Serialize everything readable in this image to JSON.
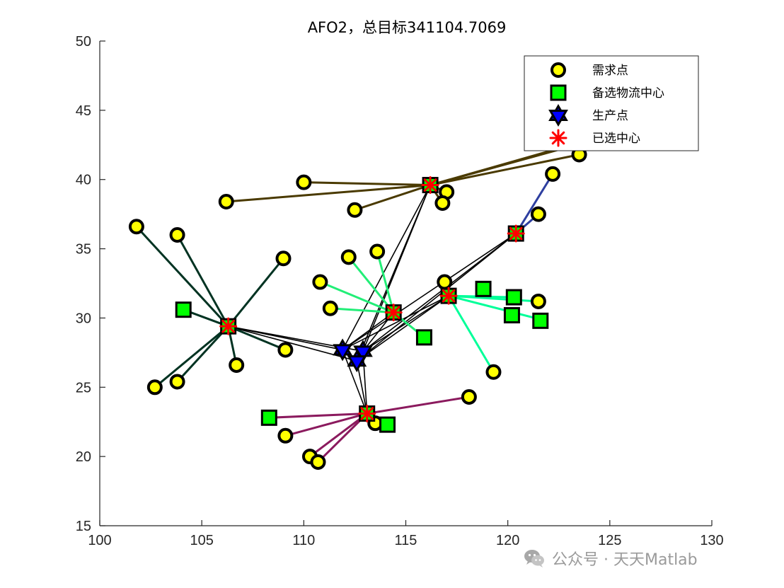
{
  "chart_data": {
    "type": "scatter",
    "title": "AFO2，总目标341104.7069",
    "xlabel": "",
    "ylabel": "",
    "xlim": [
      100,
      130
    ],
    "ylim": [
      15,
      50
    ],
    "xticks": [
      100,
      105,
      110,
      115,
      120,
      125,
      130
    ],
    "yticks": [
      15,
      20,
      25,
      30,
      35,
      40,
      45,
      50
    ],
    "grid": false,
    "legend_position": "top-right",
    "legend": [
      {
        "name": "需求点",
        "marker": "circle"
      },
      {
        "name": "备选物流中心",
        "marker": "square"
      },
      {
        "name": "生产点",
        "marker": "hexagram"
      },
      {
        "name": "已选中心",
        "marker": "asterisk"
      }
    ],
    "colors": {
      "demand_fill": "#ffff00",
      "candidate_fill": "#00ff00",
      "production_fill": "#0000ff",
      "selected": "#ff0000",
      "supply_line": "#000000",
      "axis": "#262626"
    },
    "demand_points": [
      [
        101.8,
        36.6
      ],
      [
        103.8,
        36.0
      ],
      [
        102.7,
        25.0
      ],
      [
        103.8,
        25.4
      ],
      [
        106.2,
        38.4
      ],
      [
        106.7,
        26.6
      ],
      [
        109.0,
        34.3
      ],
      [
        109.1,
        27.7
      ],
      [
        110.0,
        39.8
      ],
      [
        110.8,
        32.6
      ],
      [
        111.3,
        30.7
      ],
      [
        112.2,
        34.4
      ],
      [
        112.5,
        37.8
      ],
      [
        113.6,
        34.8
      ],
      [
        116.9,
        32.6
      ],
      [
        117.0,
        39.1
      ],
      [
        116.8,
        38.3
      ],
      [
        119.3,
        26.1
      ],
      [
        121.5,
        31.2
      ],
      [
        121.5,
        37.5
      ],
      [
        122.2,
        40.4
      ],
      [
        123.5,
        41.8
      ],
      [
        109.1,
        21.5
      ],
      [
        110.3,
        20.0
      ],
      [
        110.7,
        19.6
      ],
      [
        113.5,
        22.4
      ],
      [
        118.1,
        24.3
      ]
    ],
    "candidate_centers": [
      [
        104.1,
        30.6
      ],
      [
        108.3,
        22.8
      ],
      [
        114.1,
        22.3
      ],
      [
        115.9,
        28.6
      ],
      [
        118.8,
        32.1
      ],
      [
        120.3,
        31.5
      ],
      [
        120.2,
        30.2
      ],
      [
        121.6,
        29.8
      ],
      [
        106.3,
        29.4
      ],
      [
        113.1,
        23.1
      ],
      [
        114.4,
        30.4
      ],
      [
        117.1,
        31.6
      ],
      [
        116.2,
        39.6
      ],
      [
        120.4,
        36.1
      ]
    ],
    "production_points": [
      [
        111.9,
        27.7
      ],
      [
        112.9,
        27.6
      ],
      [
        112.6,
        26.9
      ]
    ],
    "selected_centers": [
      [
        106.3,
        29.4
      ],
      [
        113.1,
        23.1
      ],
      [
        114.4,
        30.4
      ],
      [
        117.1,
        31.6
      ],
      [
        116.2,
        39.6
      ],
      [
        120.4,
        36.1
      ]
    ],
    "assignments": [
      {
        "center": 0,
        "color": "#003322",
        "demand": [
          0,
          1,
          2,
          3,
          5,
          6,
          7
        ]
      },
      {
        "center": 1,
        "color": "#8b1a5e",
        "demand": [
          22,
          23,
          24,
          25,
          26
        ]
      },
      {
        "center": 2,
        "color": "#22ee77",
        "demand": [
          9,
          10,
          11,
          13
        ]
      },
      {
        "center": 3,
        "color": "#00ff99",
        "demand": [
          14,
          17,
          18
        ]
      },
      {
        "center": 4,
        "color": "#4a3a00",
        "demand": [
          4,
          8,
          12,
          15,
          16,
          21
        ]
      },
      {
        "center": 5,
        "color": "#2e3fa0",
        "demand": [
          19,
          20
        ]
      }
    ],
    "supply_links": [
      [
        0,
        0
      ],
      [
        0,
        1
      ],
      [
        0,
        2
      ],
      [
        1,
        1
      ],
      [
        1,
        2
      ],
      [
        1,
        0
      ],
      [
        2,
        0
      ],
      [
        2,
        1
      ],
      [
        3,
        0
      ],
      [
        3,
        1
      ],
      [
        3,
        2
      ],
      [
        4,
        0
      ],
      [
        4,
        1
      ],
      [
        4,
        2
      ],
      [
        5,
        0
      ],
      [
        5,
        1
      ],
      [
        5,
        2
      ]
    ],
    "extra_segments": [
      {
        "color": "#4a3a00",
        "from": [
          116.2,
          39.6
        ],
        "to": [
          122.4,
          42.2
        ]
      },
      {
        "color": "#4a3a00",
        "from": [
          116.2,
          39.6
        ],
        "to": [
          123.6,
          42.6
        ]
      },
      {
        "color": "#00ff99",
        "from": [
          117.1,
          31.6
        ],
        "to": [
          121.6,
          29.9
        ]
      },
      {
        "color": "#00ff99",
        "from": [
          117.1,
          31.6
        ],
        "to": [
          120.3,
          31.5
        ]
      },
      {
        "color": "#22ee77",
        "from": [
          114.4,
          30.4
        ],
        "to": [
          115.9,
          28.6
        ]
      },
      {
        "color": "#003322",
        "from": [
          106.3,
          29.4
        ],
        "to": [
          104.1,
          30.6
        ]
      },
      {
        "color": "#8b1a5e",
        "from": [
          113.1,
          23.1
        ],
        "to": [
          108.3,
          22.8
        ]
      }
    ]
  },
  "watermark": {
    "text": "公众号 · 天天Matlab",
    "icon": "wechat-icon"
  }
}
